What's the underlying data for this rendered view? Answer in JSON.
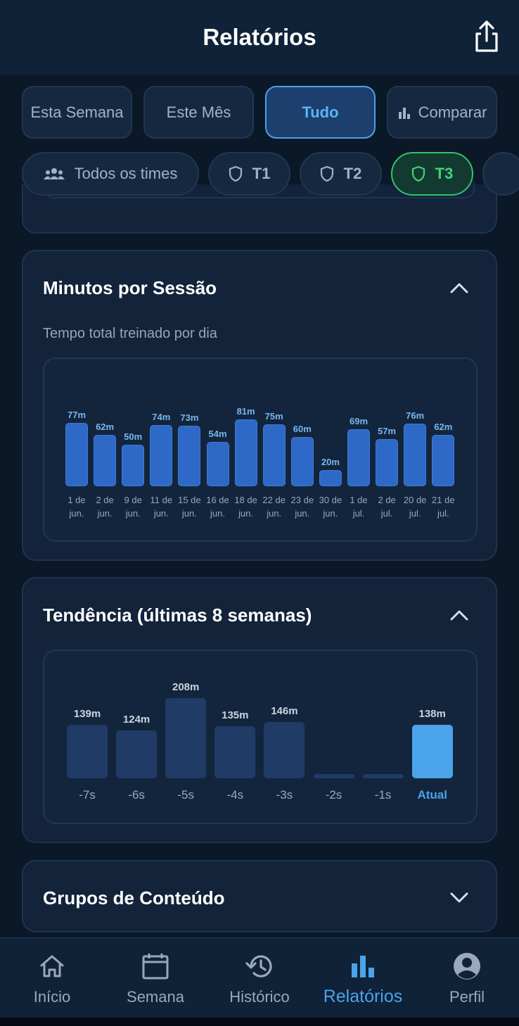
{
  "header": {
    "title": "Relatórios",
    "share_icon": "share-icon"
  },
  "range_filters": [
    {
      "label": "Esta Semana",
      "active": false
    },
    {
      "label": "Este Mês",
      "active": false
    },
    {
      "label": "Tudo",
      "active": true
    },
    {
      "label": "Comparar",
      "active": false,
      "icon": "bar-chart-icon"
    }
  ],
  "team_filters": [
    {
      "label": "Todos os times",
      "icon": "group-icon",
      "active": false
    },
    {
      "label": "T1",
      "icon": "shield-icon",
      "active": false
    },
    {
      "label": "T2",
      "icon": "shield-icon",
      "active": false
    },
    {
      "label": "T3",
      "icon": "shield-icon",
      "active": true
    }
  ],
  "minutes_card": {
    "title": "Minutos por Sessão",
    "subtitle": "Tempo total treinado por dia",
    "expanded": true
  },
  "trend_card": {
    "title": "Tendência (últimas 8 semanas)",
    "expanded": true
  },
  "content_groups_card": {
    "title": "Grupos de Conteúdo",
    "expanded": false
  },
  "chart_data": [
    {
      "type": "bar",
      "categories": [
        [
          "1 de",
          "jun."
        ],
        [
          "2 de",
          "jun."
        ],
        [
          "9 de",
          "jun."
        ],
        [
          "11 de",
          "jun."
        ],
        [
          "15 de",
          "jun."
        ],
        [
          "16 de",
          "jun."
        ],
        [
          "18 de",
          "jun."
        ],
        [
          "22 de",
          "jun."
        ],
        [
          "23 de",
          "jun."
        ],
        [
          "30 de",
          "jun."
        ],
        [
          "1 de",
          "jul."
        ],
        [
          "2 de",
          "jul."
        ],
        [
          "20 de",
          "jul."
        ],
        [
          "21 de",
          "jul."
        ]
      ],
      "values": [
        77,
        62,
        50,
        74,
        73,
        54,
        81,
        75,
        60,
        20,
        69,
        57,
        76,
        62
      ],
      "value_labels": [
        "77m",
        "62m",
        "50m",
        "74m",
        "73m",
        "54m",
        "81m",
        "75m",
        "60m",
        "20m",
        "69m",
        "57m",
        "76m",
        "62m"
      ],
      "bar_color": "#2f69c8",
      "label_color": "#78b6f0"
    },
    {
      "type": "bar",
      "categories": [
        "-7s",
        "-6s",
        "-5s",
        "-4s",
        "-3s",
        "-2s",
        "-1s",
        "Atual"
      ],
      "values": [
        139,
        124,
        208,
        135,
        146,
        0,
        0,
        138
      ],
      "value_labels": [
        "139m",
        "124m",
        "208m",
        "135m",
        "146m",
        "",
        "",
        "138m"
      ],
      "bar_color": "#1f3b66",
      "highlight_color": "#4ba3ea",
      "highlight_index": 7
    }
  ],
  "bottom_nav": [
    {
      "label": "Início",
      "icon": "home-icon",
      "active": false
    },
    {
      "label": "Semana",
      "icon": "calendar-icon",
      "active": false
    },
    {
      "label": "Histórico",
      "icon": "history-icon",
      "active": false
    },
    {
      "label": "Relatórios",
      "icon": "bar-chart-icon",
      "active": true
    },
    {
      "label": "Perfil",
      "icon": "profile-icon",
      "active": false
    }
  ],
  "colors": {
    "accent": "#4ba3ea",
    "team_active": "#44d17a",
    "background": "#0b1828"
  }
}
